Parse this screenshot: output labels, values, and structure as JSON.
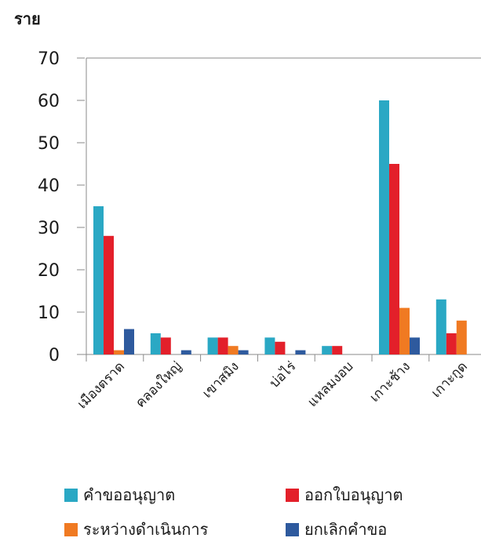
{
  "chart_data": {
    "type": "bar",
    "title": "",
    "xlabel": "",
    "ylabel": "ราย",
    "ylim": [
      0,
      70
    ],
    "yticks": [
      0,
      10,
      20,
      30,
      40,
      50,
      60,
      70
    ],
    "grid": false,
    "legend_position": "bottom",
    "categories": [
      "เมืองตราด",
      "คลองใหญ่",
      "เขาสมิง",
      "บ่อไร่",
      "แหลมงอบ",
      "เกาะช้าง",
      "เกาะกูด"
    ],
    "series": [
      {
        "name": "คำขออนุญาต",
        "color": "#2aa8c4",
        "values": [
          35,
          5,
          4,
          4,
          2,
          60,
          13
        ]
      },
      {
        "name": "ออกใบอนุญาต",
        "color": "#e3202a",
        "values": [
          28,
          4,
          4,
          3,
          2,
          45,
          5
        ]
      },
      {
        "name": "ระหว่างดำเนินการ",
        "color": "#f07a22",
        "values": [
          1,
          0,
          2,
          0,
          0,
          11,
          8
        ]
      },
      {
        "name": "ยกเลิกคำขอ",
        "color": "#2e5a9e",
        "values": [
          6,
          1,
          1,
          1,
          0,
          4,
          0
        ]
      }
    ]
  }
}
